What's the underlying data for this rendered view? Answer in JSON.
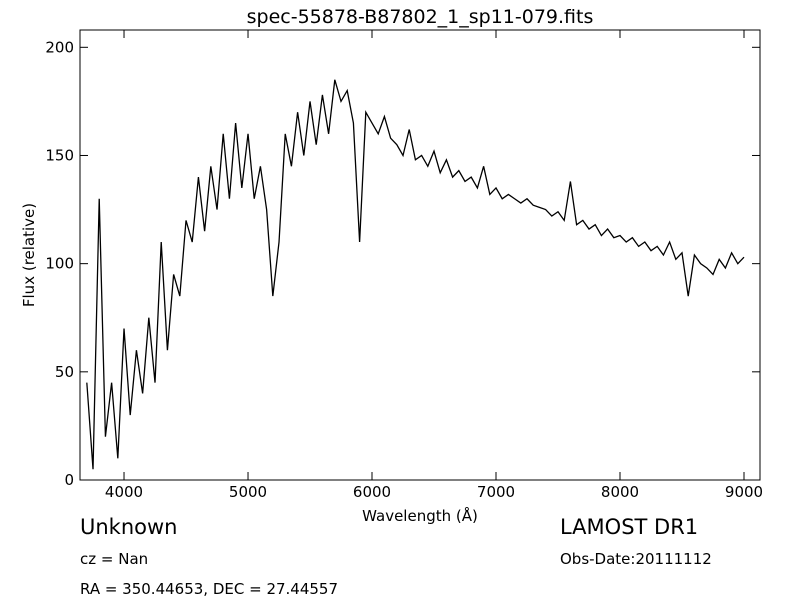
{
  "chart_data": {
    "type": "line",
    "title": "spec-55878-B87802_1_sp11-079.fits",
    "x_label": "Wavelength (Å)",
    "y_label": "Flux (relative)",
    "annotations": {
      "object_class": "Unknown",
      "redshift": "cz = Nan",
      "coordinates": "RA = 350.44653, DEC = 27.44557",
      "survey": "LAMOST DR1",
      "obs_date": "Obs-Date:20111112"
    },
    "x": [
      3700,
      3750,
      3800,
      3850,
      3900,
      3950,
      4000,
      4050,
      4100,
      4150,
      4200,
      4250,
      4300,
      4350,
      4400,
      4450,
      4500,
      4550,
      4600,
      4650,
      4700,
      4750,
      4800,
      4850,
      4900,
      4950,
      5000,
      5050,
      5100,
      5150,
      5200,
      5250,
      5300,
      5350,
      5400,
      5450,
      5500,
      5550,
      5600,
      5650,
      5700,
      5750,
      5800,
      5850,
      5900,
      5950,
      6000,
      6050,
      6100,
      6150,
      6200,
      6250,
      6300,
      6350,
      6400,
      6450,
      6500,
      6550,
      6600,
      6650,
      6700,
      6750,
      6800,
      6850,
      6900,
      6950,
      7000,
      7050,
      7100,
      7150,
      7200,
      7250,
      7300,
      7350,
      7400,
      7450,
      7500,
      7550,
      7600,
      7650,
      7700,
      7750,
      7800,
      7850,
      7900,
      7950,
      8000,
      8050,
      8100,
      8150,
      8200,
      8250,
      8300,
      8350,
      8400,
      8450,
      8500,
      8550,
      8600,
      8650,
      8700,
      8750,
      8800,
      8850,
      8900,
      8950,
      9000
    ],
    "series": [
      {
        "color": "#000000",
        "values": [
          45,
          5,
          130,
          20,
          45,
          10,
          70,
          30,
          60,
          40,
          75,
          45,
          110,
          60,
          95,
          85,
          120,
          110,
          140,
          115,
          145,
          125,
          160,
          130,
          165,
          135,
          160,
          130,
          145,
          125,
          85,
          110,
          160,
          145,
          170,
          150,
          175,
          155,
          178,
          160,
          185,
          175,
          180,
          165,
          110,
          170,
          165,
          160,
          168,
          158,
          155,
          150,
          162,
          148,
          150,
          145,
          152,
          142,
          148,
          140,
          143,
          138,
          140,
          135,
          145,
          132,
          135,
          130,
          132,
          130,
          128,
          130,
          127,
          126,
          125,
          122,
          124,
          120,
          138,
          118,
          120,
          116,
          118,
          113,
          116,
          112,
          113,
          110,
          112,
          108,
          110,
          106,
          108,
          104,
          110,
          102,
          105,
          85,
          104,
          100,
          98,
          95,
          102,
          98,
          105,
          100,
          103
        ]
      }
    ],
    "xlim": [
      3645,
      9129
    ],
    "ylim": [
      0,
      208
    ],
    "xticks": [
      4000,
      5000,
      6000,
      7000,
      8000,
      9000
    ],
    "yticks": [
      0,
      50,
      100,
      150,
      200
    ]
  }
}
